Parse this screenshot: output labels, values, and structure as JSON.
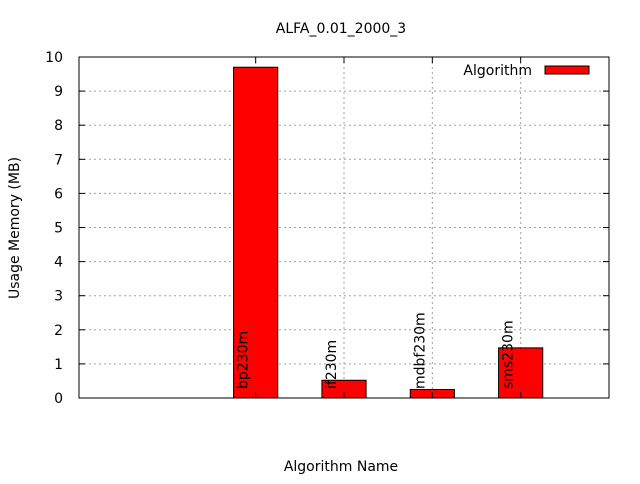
{
  "chart_data": {
    "type": "bar",
    "title": "ALFA_0.01_2000_3",
    "xlabel": "Algorithm Name",
    "ylabel": "Usage Memory (MB)",
    "ylim": [
      0,
      10
    ],
    "yticks": [
      0,
      1,
      2,
      3,
      4,
      5,
      6,
      7,
      8,
      9,
      10
    ],
    "grid": true,
    "legend_position": "top-right",
    "categories": [
      "bp230m",
      "if230m",
      "mdbf230m",
      "sms230m"
    ],
    "series": [
      {
        "name": "Algorithm",
        "color": "#ff0000",
        "values": [
          9.7,
          0.52,
          0.25,
          1.47
        ]
      }
    ]
  }
}
